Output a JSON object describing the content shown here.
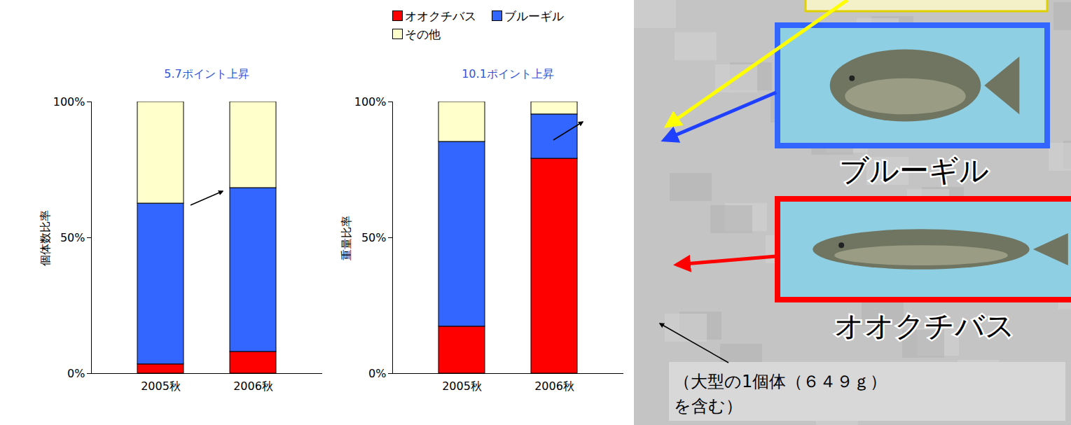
{
  "chart_data": [
    {
      "type": "bar",
      "stacked": true,
      "title": "5.7ポイント上昇",
      "y_label": "個体数比率",
      "categories": [
        "2005秋",
        "2006秋"
      ],
      "series": [
        {
          "name": "オオクチバス",
          "color": "#ff0000",
          "values": [
            3.4,
            8.0
          ]
        },
        {
          "name": "ブルーギル",
          "color": "#3366ff",
          "values": [
            59.2,
            60.3
          ]
        },
        {
          "name": "その他",
          "color": "#ffffcc",
          "values": [
            37.4,
            31.7
          ]
        }
      ],
      "ylim": [
        0,
        100
      ],
      "yticks": [
        {
          "value": 0,
          "label": "0%"
        },
        {
          "value": 50,
          "label": "50%"
        },
        {
          "value": 100,
          "label": "100%"
        }
      ]
    },
    {
      "type": "bar",
      "stacked": true,
      "title": "10.1ポイント上昇",
      "y_label": "重量比率",
      "categories": [
        "2005秋",
        "2006秋"
      ],
      "series": [
        {
          "name": "オオクチバス",
          "color": "#ff0000",
          "values": [
            17.3,
            79.1
          ]
        },
        {
          "name": "ブルーギル",
          "color": "#3366ff",
          "values": [
            68.0,
            16.3
          ]
        },
        {
          "name": "その他",
          "color": "#ffffcc",
          "values": [
            14.7,
            4.6
          ]
        }
      ],
      "ylim": [
        0,
        100
      ],
      "yticks": [
        {
          "value": 0,
          "label": "0%"
        },
        {
          "value": 50,
          "label": "50%"
        },
        {
          "value": 100,
          "label": "100%"
        }
      ],
      "legend": "top",
      "annotations": [
        "ブルーギル",
        "オオクチバス",
        "（大型の1個体（６４９ｇ）を含む）"
      ]
    }
  ]
}
